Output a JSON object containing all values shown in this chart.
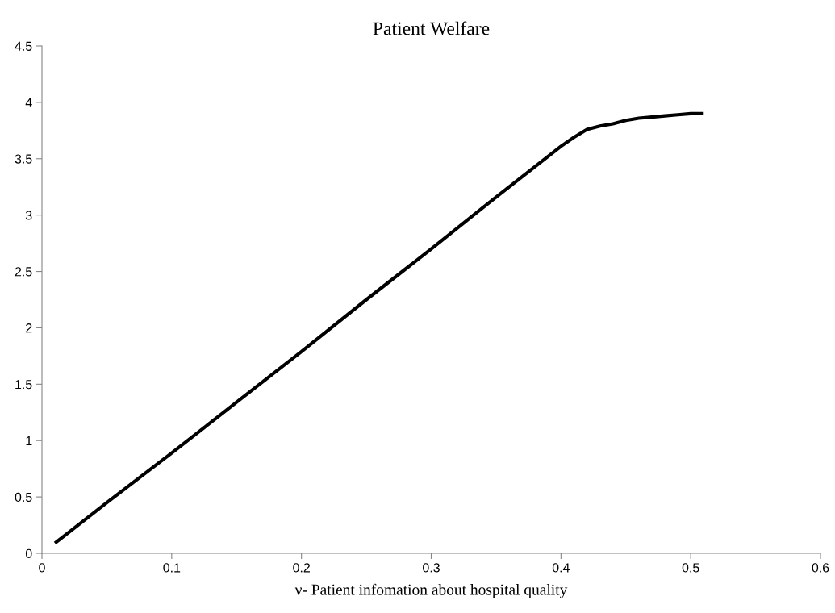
{
  "chart_data": {
    "type": "line",
    "title": "Patient Welfare",
    "xlabel": "ν- Patient infomation about hospital quality",
    "x": [
      0.01,
      0.02,
      0.05,
      0.1,
      0.15,
      0.2,
      0.25,
      0.3,
      0.35,
      0.4,
      0.41,
      0.42,
      0.43,
      0.44,
      0.45,
      0.46,
      0.47,
      0.48,
      0.49,
      0.5,
      0.51
    ],
    "series": [
      {
        "color": "#000000",
        "values": [
          0.09,
          0.18,
          0.45,
          0.89,
          1.34,
          1.79,
          2.25,
          2.7,
          3.16,
          3.61,
          3.69,
          3.76,
          3.79,
          3.81,
          3.84,
          3.86,
          3.87,
          3.88,
          3.89,
          3.9,
          3.9
        ]
      }
    ],
    "xlim": [
      0,
      0.6
    ],
    "xticks": [
      0,
      0.1,
      0.2,
      0.3,
      0.4,
      0.5,
      0.6
    ],
    "ylim": [
      0,
      4.5
    ],
    "yticks": [
      0,
      0.5,
      1,
      1.5,
      2,
      2.5,
      3,
      3.5,
      4,
      4.5
    ],
    "grid": false,
    "marker": "none",
    "line_style": "solid"
  }
}
